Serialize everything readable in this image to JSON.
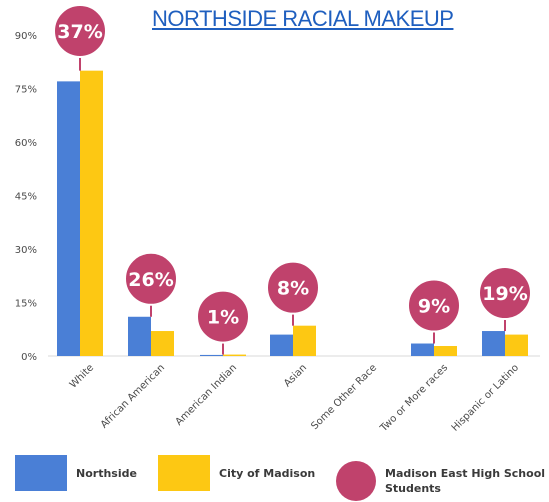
{
  "title": "NORTHSIDE RACIAL MAKEUP",
  "colors": {
    "northside": "#4a7fd6",
    "city": "#fdc813",
    "bubble": "#c0426c"
  },
  "legend": [
    {
      "label": "Northside",
      "color": "#4a7fd6",
      "shape": "square"
    },
    {
      "label": "City of Madison",
      "color": "#fdc813",
      "shape": "square"
    },
    {
      "label": "Madison East High School Students",
      "color": "#c0426c",
      "shape": "circle"
    }
  ],
  "chart_data": {
    "type": "bar",
    "categories": [
      "White",
      "African American",
      "American Indian",
      "Asian",
      "Some Other Race",
      "Two or More races",
      "Hispanic or Latino"
    ],
    "series": [
      {
        "name": "Northside",
        "values": [
          77,
          11,
          0.3,
          6,
          0,
          3.5,
          7
        ]
      },
      {
        "name": "City of Madison",
        "values": [
          80,
          7,
          0.4,
          8.5,
          0,
          2.8,
          6
        ]
      }
    ],
    "bubbles": {
      "name": "Madison East High School Students",
      "labels": [
        "37%",
        "26%",
        "1%",
        "8%",
        "",
        "9%",
        "19%"
      ]
    },
    "yticks": [
      "0%",
      "15%",
      "30%",
      "45%",
      "60%",
      "75%",
      "90%"
    ],
    "ylim": [
      0,
      90
    ],
    "grid": false,
    "legend_position": "bottom"
  }
}
